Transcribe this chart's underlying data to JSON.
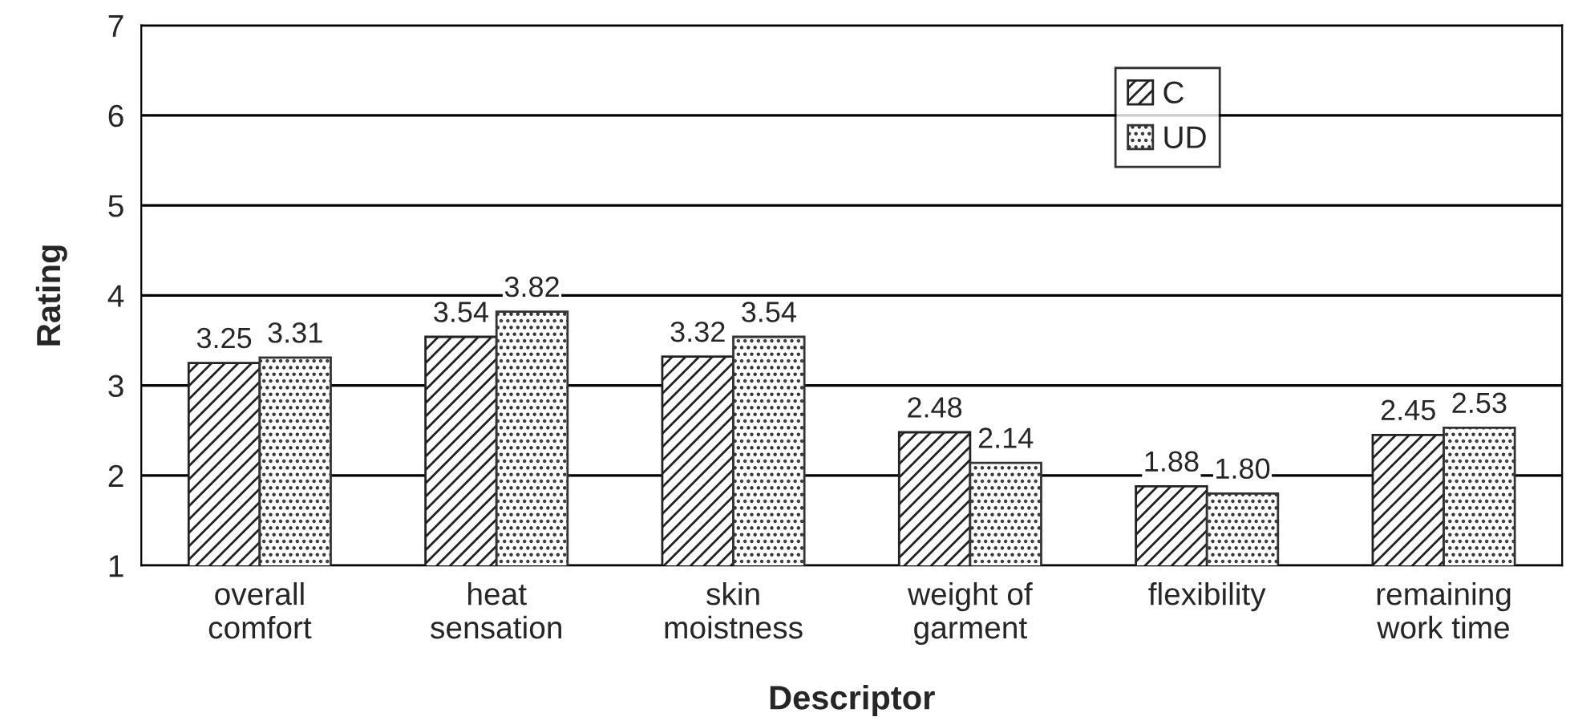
{
  "chart_data": {
    "type": "bar",
    "xlabel": "Descriptor",
    "ylabel": "Rating",
    "categories": [
      "overall\ncomfort",
      "heat\nsensation",
      "skin\nmoistness",
      "weight of\ngarment",
      "flexibility",
      "remaining\nwork time"
    ],
    "series": [
      {
        "name": "C",
        "color": "#222222",
        "values": [
          3.25,
          3.54,
          3.32,
          2.48,
          1.88,
          2.45
        ],
        "value_labels": [
          "3.25",
          "3.54",
          "3.32",
          "2.48",
          "1.88",
          "2.45"
        ]
      },
      {
        "name": "UD",
        "color": "#333333",
        "values": [
          3.31,
          3.82,
          3.54,
          2.14,
          1.8,
          2.53
        ],
        "value_labels": [
          "3.31",
          "3.82",
          "3.54",
          "2.14",
          "1.80",
          "2.53"
        ]
      }
    ],
    "ylim": [
      1,
      7
    ],
    "yticks": [
      1,
      2,
      3,
      4,
      5,
      6,
      7
    ],
    "grid": "y",
    "legend": "top right"
  }
}
